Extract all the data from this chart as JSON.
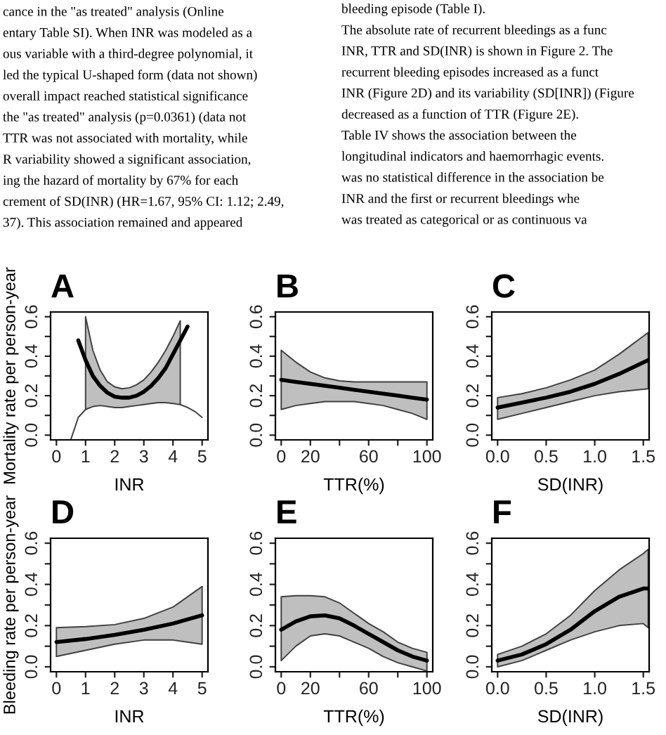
{
  "chart_data": [
    {
      "type": "other",
      "annotations": [
        "cance in the \"as treated\" analysis (Online",
        "entary Table SI). When INR was modeled as a",
        "ous variable with a third-degree polynomial, it",
        "led the typical U-shaped form (data not shown)",
        "overall impact reached statistical significance",
        "the \"as treated\" analysis (p=0.0361) (data not",
        "TTR was not associated with mortality, while",
        "R variability showed a significant association,",
        "ing the hazard of mortality by 67% for each",
        "crement of SD(INR) (HR=1.67, 95% CI: 1.12; 2.49,",
        "37). This association remained and appeared",
        "bleeding episode (Table I).",
        "The absolute rate of recurrent bleedings as a func",
        "INR, TTR and SD(INR) is shown in Figure 2. The",
        "recurrent bleeding episodes increased as a funct",
        "INR (Figure 2D) and its variability (SD[INR]) (Figure",
        "decreased as a function of TTR (Figure 2E).",
        "Table IV shows the association between the",
        "longitudinal indicators and haemorrhagic events.",
        "was no statistical difference in the association be",
        "INR and the first or recurrent bleedings whe",
        "was treated as categorical or as continuous va"
      ]
    },
    {
      "type": "line",
      "title": "A",
      "xlabel": "INR",
      "ylabel": "Mortality rate per person-year",
      "xlim": [
        -0.2,
        5.2
      ],
      "ylim": [
        -0.024,
        0.624
      ],
      "xticks": [
        0,
        1,
        2,
        3,
        4,
        5
      ],
      "yticks": [
        {
          "value": 0,
          "label": "0.0"
        },
        {
          "value": 0.1,
          "label": null
        },
        0.2,
        {
          "value": 0.3,
          "label": null
        },
        0.4,
        {
          "value": 0.5,
          "label": null
        },
        0.6
      ],
      "series": [
        {
          "color": "#000000",
          "x": [
            0.75,
            1,
            1.25,
            1.5,
            1.75,
            2,
            2.25,
            2.5,
            2.75,
            3,
            3.25,
            3.5,
            3.75,
            4,
            4.25,
            4.5
          ],
          "values": [
            0.48,
            0.38,
            0.3,
            0.25,
            0.215,
            0.195,
            0.19,
            0.19,
            0.2,
            0.22,
            0.25,
            0.29,
            0.34,
            0.41,
            0.48,
            0.55
          ],
          "upper": [
            null,
            0.6,
            0.43,
            0.33,
            0.27,
            0.245,
            0.235,
            0.24,
            0.255,
            0.28,
            0.32,
            0.37,
            0.43,
            0.5,
            0.58,
            null
          ],
          "lower": [
            null,
            0.13,
            0.145,
            0.15,
            0.145,
            0.14,
            0.14,
            0.145,
            0.15,
            0.155,
            0.16,
            0.165,
            0.165,
            0.16,
            0.155,
            null
          ]
        },
        {
          "color": "#404040",
          "x": [
            0.5,
            0.75,
            1
          ],
          "values": [
            -0.02,
            0.09,
            0.13
          ]
        },
        {
          "color": "#404040",
          "x": [
            4.25,
            4.5,
            4.75,
            5
          ],
          "values": [
            0.155,
            0.14,
            0.12,
            0.09
          ]
        }
      ]
    },
    {
      "type": "line",
      "title": "B",
      "xlabel": "TTR(%)",
      "xlim": [
        -4,
        104
      ],
      "ylim": [
        -0.024,
        0.624
      ],
      "xticks": [
        0,
        20,
        {
          "value": 40,
          "label": null
        },
        60,
        {
          "value": 80,
          "label": null
        },
        100
      ],
      "yticks": [
        {
          "value": 0,
          "label": "0.0"
        },
        {
          "value": 0.1,
          "label": null
        },
        0.2,
        {
          "value": 0.3,
          "label": null
        },
        0.4,
        {
          "value": 0.5,
          "label": null
        },
        0.6
      ],
      "series": [
        {
          "color": "#000000",
          "x": [
            0,
            10,
            20,
            30,
            40,
            50,
            60,
            70,
            80,
            90,
            100
          ],
          "values": [
            0.28,
            0.27,
            0.26,
            0.25,
            0.24,
            0.23,
            0.22,
            0.21,
            0.2,
            0.19,
            0.18
          ],
          "upper": [
            0.43,
            0.37,
            0.32,
            0.29,
            0.275,
            0.27,
            0.27,
            0.27,
            0.27,
            0.27,
            0.27
          ],
          "lower": [
            0.13,
            0.15,
            0.16,
            0.17,
            0.17,
            0.17,
            0.16,
            0.15,
            0.13,
            0.11,
            0.08
          ]
        }
      ]
    },
    {
      "type": "line",
      "title": "C",
      "xlabel": "SD(INR)",
      "xlim": [
        -0.06,
        1.56
      ],
      "ylim": [
        -0.024,
        0.624
      ],
      "xticks": [
        {
          "value": 0,
          "label": "0.0"
        },
        0.5,
        {
          "value": 1,
          "label": "1.0"
        },
        1.5
      ],
      "yticks": [
        {
          "value": 0,
          "label": "0.0"
        },
        {
          "value": 0.1,
          "label": null
        },
        0.2,
        {
          "value": 0.3,
          "label": null
        },
        0.4,
        {
          "value": 0.5,
          "label": null
        },
        0.6
      ],
      "series": [
        {
          "color": "#000000",
          "x": [
            0,
            0.25,
            0.5,
            0.75,
            1,
            1.25,
            1.55
          ],
          "values": [
            0.14,
            0.165,
            0.19,
            0.22,
            0.26,
            0.31,
            0.38
          ],
          "upper": [
            0.19,
            0.21,
            0.24,
            0.28,
            0.33,
            0.41,
            0.52
          ],
          "lower": [
            0.08,
            0.11,
            0.14,
            0.17,
            0.2,
            0.22,
            0.235
          ]
        }
      ]
    },
    {
      "type": "line",
      "title": "D",
      "xlabel": "INR",
      "ylabel": "Bleeding rate per person-year",
      "xlim": [
        -0.2,
        5.2
      ],
      "ylim": [
        -0.024,
        0.624
      ],
      "xticks": [
        0,
        1,
        2,
        3,
        4,
        5
      ],
      "yticks": [
        {
          "value": 0,
          "label": "0.0"
        },
        {
          "value": 0.1,
          "label": null
        },
        0.2,
        {
          "value": 0.3,
          "label": null
        },
        0.4,
        {
          "value": 0.5,
          "label": null
        },
        0.6
      ],
      "series": [
        {
          "color": "#000000",
          "x": [
            0,
            1,
            2,
            3,
            4,
            5
          ],
          "values": [
            0.12,
            0.135,
            0.155,
            0.18,
            0.21,
            0.25
          ],
          "upper": [
            0.19,
            0.195,
            0.205,
            0.235,
            0.29,
            0.39
          ],
          "lower": [
            0.05,
            0.08,
            0.11,
            0.13,
            0.13,
            0.11
          ]
        }
      ]
    },
    {
      "type": "line",
      "title": "E",
      "xlabel": "TTR(%)",
      "xlim": [
        -4,
        104
      ],
      "ylim": [
        -0.024,
        0.624
      ],
      "xticks": [
        0,
        20,
        {
          "value": 40,
          "label": null
        },
        60,
        {
          "value": 80,
          "label": null
        },
        100
      ],
      "yticks": [
        {
          "value": 0,
          "label": "0.0"
        },
        {
          "value": 0.1,
          "label": null
        },
        0.2,
        {
          "value": 0.3,
          "label": null
        },
        0.4,
        {
          "value": 0.5,
          "label": null
        },
        0.6
      ],
      "series": [
        {
          "color": "#000000",
          "x": [
            0,
            10,
            20,
            30,
            40,
            50,
            60,
            70,
            80,
            90,
            100
          ],
          "values": [
            0.18,
            0.22,
            0.245,
            0.25,
            0.235,
            0.2,
            0.16,
            0.12,
            0.08,
            0.05,
            0.03
          ],
          "upper": [
            0.34,
            0.345,
            0.345,
            0.34,
            0.31,
            0.26,
            0.21,
            0.17,
            0.12,
            0.09,
            0.07
          ],
          "lower": [
            0.03,
            0.1,
            0.15,
            0.16,
            0.15,
            0.12,
            0.09,
            0.05,
            0.02,
            0.0,
            -0.02
          ]
        }
      ]
    },
    {
      "type": "line",
      "title": "F",
      "xlabel": "SD(INR)",
      "xlim": [
        -0.06,
        1.56
      ],
      "ylim": [
        -0.024,
        0.624
      ],
      "xticks": [
        {
          "value": 0,
          "label": "0.0"
        },
        0.5,
        {
          "value": 1,
          "label": "1.0"
        },
        1.5
      ],
      "yticks": [
        {
          "value": 0,
          "label": "0.0"
        },
        {
          "value": 0.1,
          "label": null
        },
        0.2,
        {
          "value": 0.3,
          "label": null
        },
        0.4,
        {
          "value": 0.5,
          "label": null
        },
        0.6
      ],
      "series": [
        {
          "color": "#000000",
          "x": [
            0,
            0.25,
            0.5,
            0.75,
            1,
            1.25,
            1.5,
            1.55
          ],
          "values": [
            0.03,
            0.06,
            0.11,
            0.18,
            0.27,
            0.34,
            0.38,
            0.38
          ],
          "upper": [
            0.06,
            0.1,
            0.16,
            0.25,
            0.37,
            0.47,
            0.55,
            0.57
          ],
          "lower": [
            0.0,
            0.03,
            0.08,
            0.13,
            0.17,
            0.2,
            0.21,
            0.19
          ]
        }
      ]
    }
  ]
}
